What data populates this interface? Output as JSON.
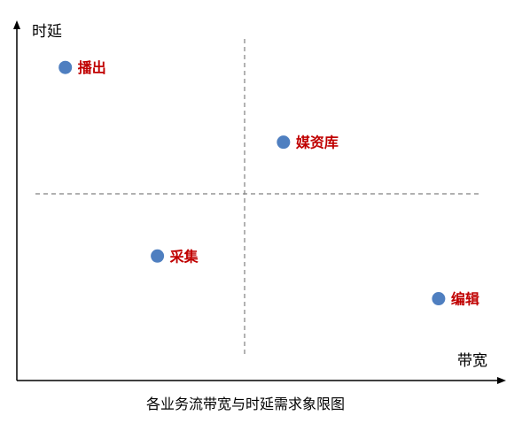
{
  "diagram": {
    "type": "quadrant",
    "y_axis_label": "时延",
    "x_axis_label": "带宽",
    "caption": "各业务流带宽与时延需求象限图",
    "colors": {
      "axis": "#000000",
      "divider": "#808080",
      "point": "#4f7fc0",
      "label": "#c00000"
    },
    "points": [
      {
        "name": "broadcast",
        "label": "播出",
        "bandwidth": 0.1,
        "latency": 0.88
      },
      {
        "name": "media-library",
        "label": "媒资库",
        "bandwidth": 0.55,
        "latency": 0.67
      },
      {
        "name": "capture",
        "label": "采集",
        "bandwidth": 0.29,
        "latency": 0.35
      },
      {
        "name": "editing",
        "label": "编辑",
        "bandwidth": 0.87,
        "latency": 0.23
      }
    ]
  }
}
